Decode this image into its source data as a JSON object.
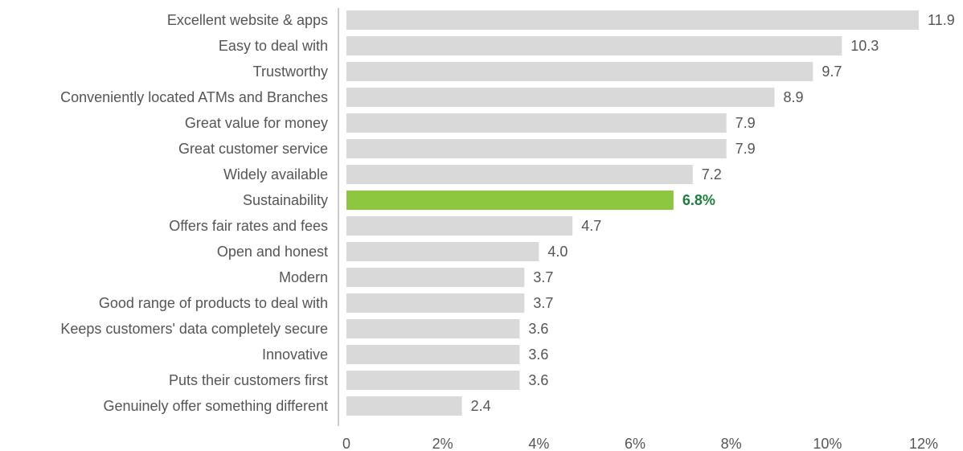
{
  "chart_data": {
    "type": "hbar",
    "categories": [
      "Excellent website & apps",
      "Easy to deal with",
      "Trustworthy",
      "Conveniently located ATMs and Branches",
      "Great value for money",
      "Great customer service",
      "Widely available",
      "Sustainability",
      "Offers fair rates and fees",
      "Open and honest",
      "Modern",
      "Good range of products to deal with",
      "Keeps customers' data completely secure",
      "Innovative",
      "Puts their customers first",
      "Genuinely offer something different"
    ],
    "values": [
      11.9,
      10.3,
      9.7,
      8.9,
      7.9,
      7.9,
      7.2,
      6.8,
      4.7,
      4.0,
      3.7,
      3.7,
      3.6,
      3.6,
      3.6,
      2.4
    ],
    "value_labels": [
      "11.9",
      "10.3",
      "9.7",
      "8.9",
      "7.9",
      "7.9",
      "7.2",
      "6.8%",
      "4.7",
      "4.0",
      "3.7",
      "3.7",
      "3.6",
      "3.6",
      "3.6",
      "2.4"
    ],
    "color": "#d9d9d9",
    "colors": [
      "#d9d9d9",
      "#d9d9d9",
      "#d9d9d9",
      "#d9d9d9",
      "#d9d9d9",
      "#d9d9d9",
      "#d9d9d9",
      "#8dc63f",
      "#d9d9d9",
      "#d9d9d9",
      "#d9d9d9",
      "#d9d9d9",
      "#d9d9d9",
      "#d9d9d9",
      "#d9d9d9",
      "#d9d9d9"
    ],
    "highlight_label_color": "#1a7f3c",
    "xlim": [
      0,
      12
    ],
    "xticks": [
      0,
      {
        "value": 2,
        "label": "2%"
      },
      {
        "value": 4,
        "label": "4%"
      },
      {
        "value": 6,
        "label": "6%"
      },
      {
        "value": 8,
        "label": "8%"
      },
      {
        "value": 10,
        "label": "10%"
      },
      {
        "value": 12,
        "label": "12%"
      }
    ],
    "grid": false
  }
}
